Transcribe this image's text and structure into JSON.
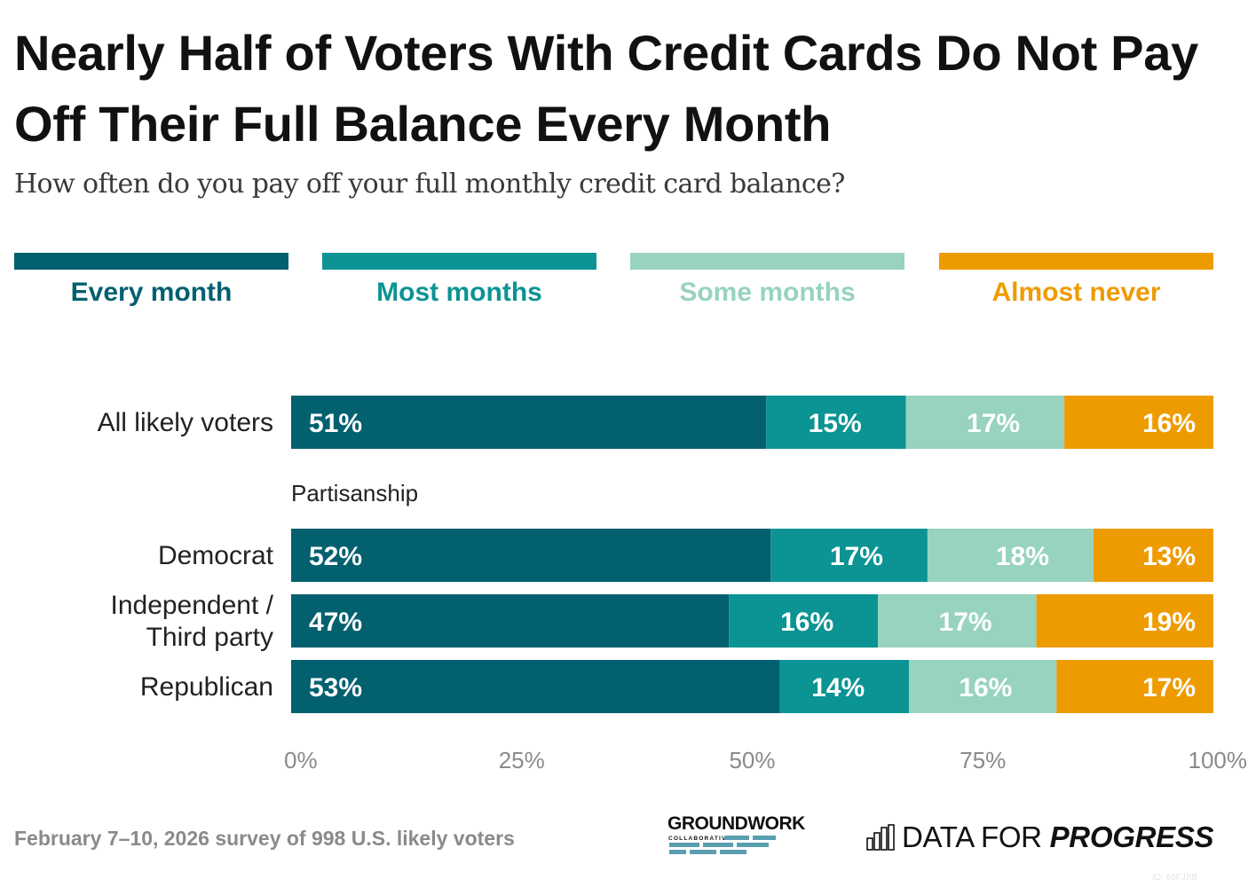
{
  "header": {
    "title": "Nearly Half of Voters With Credit Cards Do Not Pay Off Their Full Balance Every Month",
    "subtitle": "How often do you pay off your full monthly credit card balance?"
  },
  "legend": [
    {
      "label": "Every month",
      "color": "#02606F"
    },
    {
      "label": "Most months",
      "color": "#0C9394"
    },
    {
      "label": "Some months",
      "color": "#97D3BF"
    },
    {
      "label": "Almost never",
      "color": "#EE9B00"
    }
  ],
  "chart_data": {
    "type": "bar",
    "orientation": "horizontal-stacked-100",
    "title": "Nearly Half of Voters With Credit Cards Do Not Pay Off Their Full Balance Every Month",
    "subtitle": "How often do you pay off your full monthly credit card balance?",
    "xlabel": "",
    "ylabel": "",
    "xlim": [
      0,
      100
    ],
    "x_ticks": [
      "0%",
      "25%",
      "50%",
      "75%",
      "100%"
    ],
    "grid": false,
    "legend_position": "top",
    "series_names": [
      "Every month",
      "Most months",
      "Some months",
      "Almost never"
    ],
    "series_colors": [
      "#02606F",
      "#0C9394",
      "#97D3BF",
      "#EE9B00"
    ],
    "groups": [
      {
        "group_label": "",
        "rows": [
          {
            "category": "All likely voters",
            "values": [
              51,
              15,
              17,
              16
            ]
          }
        ]
      },
      {
        "group_label": "Partisanship",
        "rows": [
          {
            "category": "Democrat",
            "values": [
              52,
              17,
              18,
              13
            ]
          },
          {
            "category": "Independent / Third party",
            "values": [
              47,
              16,
              17,
              19
            ]
          },
          {
            "category": "Republican",
            "values": [
              53,
              14,
              16,
              17
            ]
          }
        ]
      }
    ]
  },
  "footer": {
    "note": "February 7–10, 2026 survey of 998 U.S. likely voters",
    "logo_groundwork": "GROUNDWORK",
    "logo_groundwork_sub": "COLLABORATIVE",
    "logo_dfp_prefix": "DATA FOR ",
    "logo_dfp_bold": "PROGRESS",
    "id_tag": "ID: 69FJXB"
  }
}
